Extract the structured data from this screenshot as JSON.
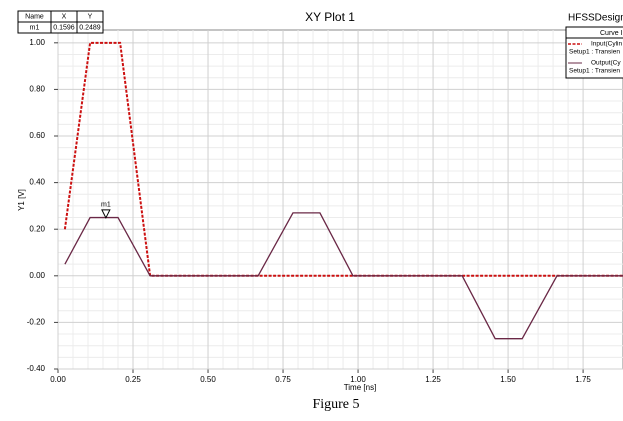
{
  "chart_data": {
    "type": "line",
    "title": "XY Plot 1",
    "design_name": "HFSSDesign_",
    "legend_title": "Curve Ir",
    "xlabel": "Time [ns]",
    "ylabel": "Y1 [V]",
    "caption": "Figure 5",
    "xlim": [
      0,
      1.883
    ],
    "ylim": [
      -0.4,
      1.055
    ],
    "xticks": [
      {
        "value": 0,
        "label": "0.00"
      },
      {
        "value": 0.25,
        "label": "0.25"
      },
      {
        "value": 0.5,
        "label": "0.50"
      },
      {
        "value": 0.75,
        "label": "0.75"
      },
      {
        "value": 1,
        "label": "1.00"
      },
      {
        "value": 1.25,
        "label": "1.25"
      },
      {
        "value": 1.5,
        "label": "1.50"
      },
      {
        "value": 1.75,
        "label": "1.75"
      }
    ],
    "yticks": [
      {
        "value": -0.4,
        "label": "-0.40"
      },
      {
        "value": -0.2,
        "label": "-0.20"
      },
      {
        "value": 0,
        "label": "0.00"
      },
      {
        "value": 0.2,
        "label": "0.20"
      },
      {
        "value": 0.4,
        "label": "0.40"
      },
      {
        "value": 0.6,
        "label": "0.60"
      },
      {
        "value": 0.8,
        "label": "0.80"
      },
      {
        "value": 1,
        "label": "1.00"
      }
    ],
    "grid": true,
    "legend_position": "top-right",
    "series": [
      {
        "name": "Input(Cylin",
        "setup": "Setup1 : Transien",
        "color": "#cc1010",
        "dash": true,
        "x": [
          0.023,
          0.107,
          0.207,
          0.307,
          1.883
        ],
        "values": [
          0.2,
          1.0,
          1.0,
          0.0,
          0.0
        ]
      },
      {
        "name": "Output(Cy",
        "setup": "Setup1 : Transien",
        "color": "#6a2846",
        "dash": false,
        "x": [
          0.023,
          0.107,
          0.2,
          0.307,
          0.667,
          0.783,
          0.873,
          0.983,
          1.347,
          1.457,
          1.547,
          1.663,
          1.883
        ],
        "values": [
          0.05,
          0.25,
          0.25,
          0.0,
          0.0,
          0.27,
          0.27,
          0.0,
          0.0,
          -0.27,
          -0.27,
          0.0,
          0.0
        ]
      }
    ],
    "marker_table": {
      "columns": [
        "Name",
        "X",
        "Y"
      ],
      "rows": [
        [
          "m1",
          0.1596,
          0.2489
        ]
      ]
    },
    "markers": [
      {
        "name": "m1",
        "x": 0.1596,
        "y": 0.2489
      }
    ]
  }
}
